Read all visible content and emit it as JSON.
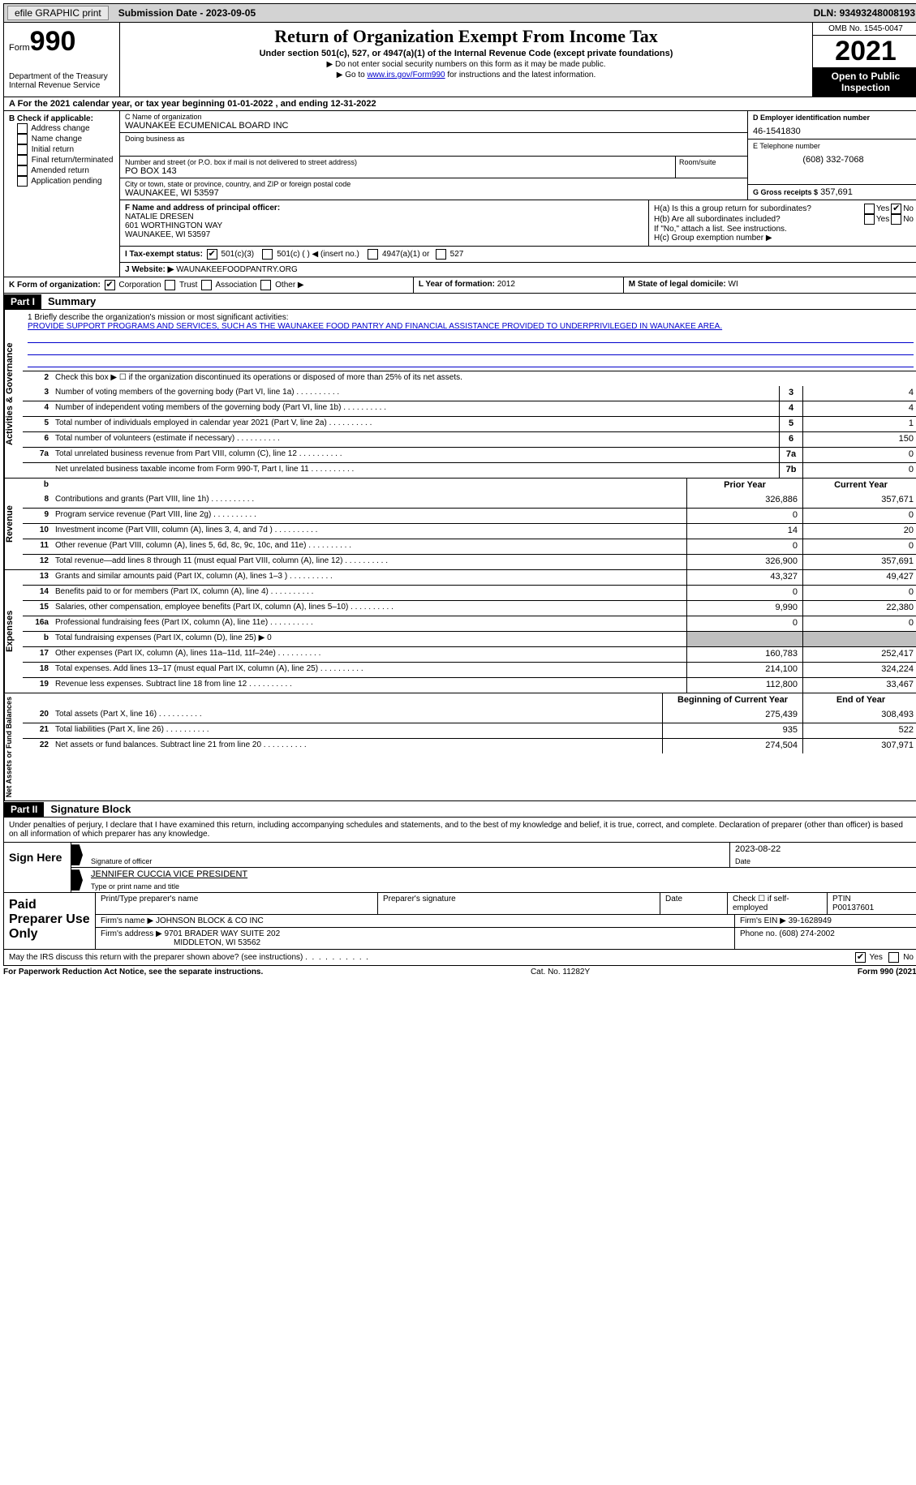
{
  "topbar": {
    "efile": "efile GRAPHIC print",
    "sub_date_lbl": "Submission Date - ",
    "sub_date": "2023-09-05",
    "dln_lbl": "DLN: ",
    "dln": "93493248008193"
  },
  "header": {
    "form_word": "Form",
    "form_num": "990",
    "dept": "Department of the Treasury Internal Revenue Service",
    "title": "Return of Organization Exempt From Income Tax",
    "sub": "Under section 501(c), 527, or 4947(a)(1) of the Internal Revenue Code (except private foundations)",
    "note1": "▶ Do not enter social security numbers on this form as it may be made public.",
    "note2_pre": "▶ Go to ",
    "note2_link": "www.irs.gov/Form990",
    "note2_post": " for instructions and the latest information.",
    "omb": "OMB No. 1545-0047",
    "year": "2021",
    "open": "Open to Public Inspection"
  },
  "rowA": "A For the 2021 calendar year, or tax year beginning 01-01-2022   , and ending 12-31-2022",
  "B": {
    "title": "B Check if applicable:",
    "opts": [
      "Address change",
      "Name change",
      "Initial return",
      "Final return/terminated",
      "Amended return",
      "Application pending"
    ]
  },
  "C": {
    "name_lbl": "C Name of organization",
    "name": "WAUNAKEE ECUMENICAL BOARD INC",
    "dba_lbl": "Doing business as",
    "dba": "",
    "street_lbl": "Number and street (or P.O. box if mail is not delivered to street address)",
    "room_lbl": "Room/suite",
    "street": "PO BOX 143",
    "city_lbl": "City or town, state or province, country, and ZIP or foreign postal code",
    "city": "WAUNAKEE, WI  53597"
  },
  "D": {
    "lbl": "D Employer identification number",
    "val": "46-1541830"
  },
  "E": {
    "lbl": "E Telephone number",
    "val": "(608) 332-7068"
  },
  "G": {
    "lbl": "G Gross receipts $",
    "val": "357,691"
  },
  "F": {
    "lbl": "F  Name and address of principal officer:",
    "name": "NATALIE DRESEN",
    "addr1": "601 WORTHINGTON WAY",
    "addr2": "WAUNAKEE, WI  53597"
  },
  "H": {
    "a_lbl": "H(a)  Is this a group return for subordinates?",
    "a_yes": "Yes",
    "a_no": "No",
    "b_lbl": "H(b)  Are all subordinates included?",
    "b_note": "If \"No,\" attach a list. See instructions.",
    "c_lbl": "H(c)  Group exemption number ▶"
  },
  "I": {
    "lbl": "I   Tax-exempt status:",
    "o1": "501(c)(3)",
    "o2": "501(c) (  ) ◀ (insert no.)",
    "o3": "4947(a)(1) or",
    "o4": "527"
  },
  "J": {
    "lbl": "J  Website: ▶",
    "val": " WAUNAKEEFOODPANTRY.ORG"
  },
  "K": {
    "lbl": "K Form of organization:",
    "o1": "Corporation",
    "o2": "Trust",
    "o3": "Association",
    "o4": "Other ▶"
  },
  "L": {
    "lbl": "L Year of formation: ",
    "val": "2012"
  },
  "M": {
    "lbl": "M State of legal domicile: ",
    "val": "WI"
  },
  "part1": {
    "hdr": "Part I",
    "title": "Summary"
  },
  "mission": {
    "lbl": "1   Briefly describe the organization's mission or most significant activities:",
    "text": "PROVIDE SUPPORT PROGRAMS AND SERVICES, SUCH AS THE WAUNAKEE FOOD PANTRY AND FINANCIAL ASSISTANCE PROVIDED TO UNDERPRIVILEGED IN WAUNAKEE AREA."
  },
  "gov": {
    "vlabel": "Activities & Governance",
    "l2": "Check this box ▶ ☐  if the organization discontinued its operations or disposed of more than 25% of its net assets.",
    "rows": [
      {
        "n": "3",
        "d": "Number of voting members of the governing body (Part VI, line 1a)",
        "box": "3",
        "v": "4"
      },
      {
        "n": "4",
        "d": "Number of independent voting members of the governing body (Part VI, line 1b)",
        "box": "4",
        "v": "4"
      },
      {
        "n": "5",
        "d": "Total number of individuals employed in calendar year 2021 (Part V, line 2a)",
        "box": "5",
        "v": "1"
      },
      {
        "n": "6",
        "d": "Total number of volunteers (estimate if necessary)",
        "box": "6",
        "v": "150"
      },
      {
        "n": "7a",
        "d": "Total unrelated business revenue from Part VIII, column (C), line 12",
        "box": "7a",
        "v": "0"
      },
      {
        "n": "",
        "d": "Net unrelated business taxable income from Form 990-T, Part I, line 11",
        "box": "7b",
        "v": "0"
      }
    ]
  },
  "cols": {
    "prior": "Prior Year",
    "curr": "Current Year",
    "beg": "Beginning of Current Year",
    "end": "End of Year"
  },
  "rev": {
    "vlabel": "Revenue",
    "rows": [
      {
        "n": "8",
        "d": "Contributions and grants (Part VIII, line 1h)",
        "p": "326,886",
        "c": "357,671"
      },
      {
        "n": "9",
        "d": "Program service revenue (Part VIII, line 2g)",
        "p": "0",
        "c": "0"
      },
      {
        "n": "10",
        "d": "Investment income (Part VIII, column (A), lines 3, 4, and 7d )",
        "p": "14",
        "c": "20"
      },
      {
        "n": "11",
        "d": "Other revenue (Part VIII, column (A), lines 5, 6d, 8c, 9c, 10c, and 11e)",
        "p": "0",
        "c": "0"
      },
      {
        "n": "12",
        "d": "Total revenue—add lines 8 through 11 (must equal Part VIII, column (A), line 12)",
        "p": "326,900",
        "c": "357,691"
      }
    ]
  },
  "exp": {
    "vlabel": "Expenses",
    "rows": [
      {
        "n": "13",
        "d": "Grants and similar amounts paid (Part IX, column (A), lines 1–3 )",
        "p": "43,327",
        "c": "49,427"
      },
      {
        "n": "14",
        "d": "Benefits paid to or for members (Part IX, column (A), line 4)",
        "p": "0",
        "c": "0"
      },
      {
        "n": "15",
        "d": "Salaries, other compensation, employee benefits (Part IX, column (A), lines 5–10)",
        "p": "9,990",
        "c": "22,380"
      },
      {
        "n": "16a",
        "d": "Professional fundraising fees (Part IX, column (A), line 11e)",
        "p": "0",
        "c": "0"
      },
      {
        "n": "b",
        "d": "Total fundraising expenses (Part IX, column (D), line 25) ▶ 0",
        "grey": true
      },
      {
        "n": "17",
        "d": "Other expenses (Part IX, column (A), lines 11a–11d, 11f–24e)",
        "p": "160,783",
        "c": "252,417"
      },
      {
        "n": "18",
        "d": "Total expenses. Add lines 13–17 (must equal Part IX, column (A), line 25)",
        "p": "214,100",
        "c": "324,224"
      },
      {
        "n": "19",
        "d": "Revenue less expenses. Subtract line 18 from line 12",
        "p": "112,800",
        "c": "33,467"
      }
    ]
  },
  "na": {
    "vlabel": "Net Assets or Fund Balances",
    "rows": [
      {
        "n": "20",
        "d": "Total assets (Part X, line 16)",
        "p": "275,439",
        "c": "308,493"
      },
      {
        "n": "21",
        "d": "Total liabilities (Part X, line 26)",
        "p": "935",
        "c": "522"
      },
      {
        "n": "22",
        "d": "Net assets or fund balances. Subtract line 21 from line 20",
        "p": "274,504",
        "c": "307,971"
      }
    ]
  },
  "part2": {
    "hdr": "Part II",
    "title": "Signature Block"
  },
  "sig_intro": "Under penalties of perjury, I declare that I have examined this return, including accompanying schedules and statements, and to the best of my knowledge and belief, it is true, correct, and complete. Declaration of preparer (other than officer) is based on all information of which preparer has any knowledge.",
  "sign": {
    "lbl": "Sign Here",
    "sig_lbl": "Signature of officer",
    "date_lbl": "Date",
    "date": "2023-08-22",
    "name": "JENNIFER CUCCIA  VICE PRESIDENT",
    "name_lbl": "Type or print name and title"
  },
  "prep": {
    "lbl": "Paid Preparer Use Only",
    "h_name": "Print/Type preparer's name",
    "h_sig": "Preparer's signature",
    "h_date": "Date",
    "h_self": "Check ☐ if self-employed",
    "h_ptin_lbl": "PTIN",
    "ptin": "P00137601",
    "firm_lbl": "Firm's name   ▶",
    "firm": "JOHNSON BLOCK & CO INC",
    "ein_lbl": "Firm's EIN ▶",
    "ein": "39-1628949",
    "addr_lbl": "Firm's address ▶",
    "addr1": "9701 BRADER WAY SUITE 202",
    "addr2": "MIDDLETON, WI  53562",
    "phone_lbl": "Phone no.",
    "phone": "(608) 274-2002"
  },
  "discuss": {
    "q": "May the IRS discuss this return with the preparer shown above? (see instructions)",
    "yes": "Yes",
    "no": "No"
  },
  "footer": {
    "l": "For Paperwork Reduction Act Notice, see the separate instructions.",
    "m": "Cat. No. 11282Y",
    "r": "Form 990 (2021)"
  }
}
